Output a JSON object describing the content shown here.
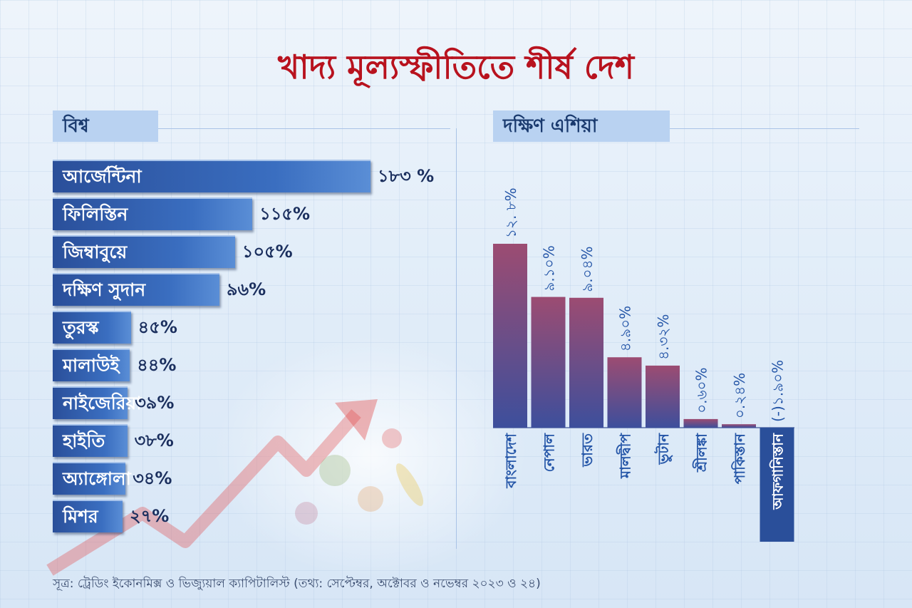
{
  "title": "খাদ্য মূল্যস্ফীতিতে শীর্ষ দেশ",
  "source": "সূত্র: ট্রেডিং ইকোনমিক্স ও ভিজ্যুয়াল ক্যাপিটালিস্ট (তথ্য: সেপ্টেম্বর, অক্টোবর ও নভেম্বর ২০২৩ ও ২৪)",
  "chart_data": [
    {
      "type": "bar",
      "orientation": "horizontal",
      "title": "বিশ্ব",
      "categories": [
        "আর্জেন্টিনা",
        "ফিলিস্তিন",
        "জিম্বাবুয়ে",
        "দক্ষিণ সুদান",
        "তুরস্ক",
        "মালাউই",
        "নাইজেরিয়া",
        "হাইতি",
        "অ্যাঙ্গোলা",
        "মিশর"
      ],
      "values": [
        183,
        115,
        105,
        96,
        45,
        44,
        39,
        38,
        34,
        27
      ],
      "value_labels": [
        "১৮৩ %",
        "১১৫%",
        "১০৫%",
        "৯৬%",
        "৪৫%",
        "৪৪%",
        "৩৯%",
        "৩৮%",
        "৩৪%",
        "২৭%"
      ],
      "unit": "%",
      "colors": {
        "bar_start": "#2a4f9a",
        "bar_end": "#5a8ed6",
        "label": "#ffffff",
        "value": "#1b2f5e"
      }
    },
    {
      "type": "bar",
      "orientation": "vertical",
      "title": "দক্ষিণ এশিয়া",
      "categories": [
        "বাংলাদেশ",
        "নেপাল",
        "ভারত",
        "মালদ্বীপ",
        "ভুটান",
        "শ্রীলঙ্কা",
        "পাকিস্তান",
        "আফগানিস্তান"
      ],
      "values": [
        12.8,
        9.1,
        9.04,
        4.9,
        4.32,
        0.6,
        0.24,
        -1.9
      ],
      "value_labels": [
        "১২. ৮%",
        "৯.১০%",
        "৯.০৪%",
        "৪.৯০%",
        "৪.৩২%",
        "০.৬০%",
        "০.২৪%",
        "(-)১.৯০%"
      ],
      "unit": "%",
      "colors": {
        "bar_top": "#9c4c72",
        "bar_bottom": "#3d4f9c",
        "negative": "#2a4f9a",
        "text": "#2556a8"
      }
    }
  ]
}
